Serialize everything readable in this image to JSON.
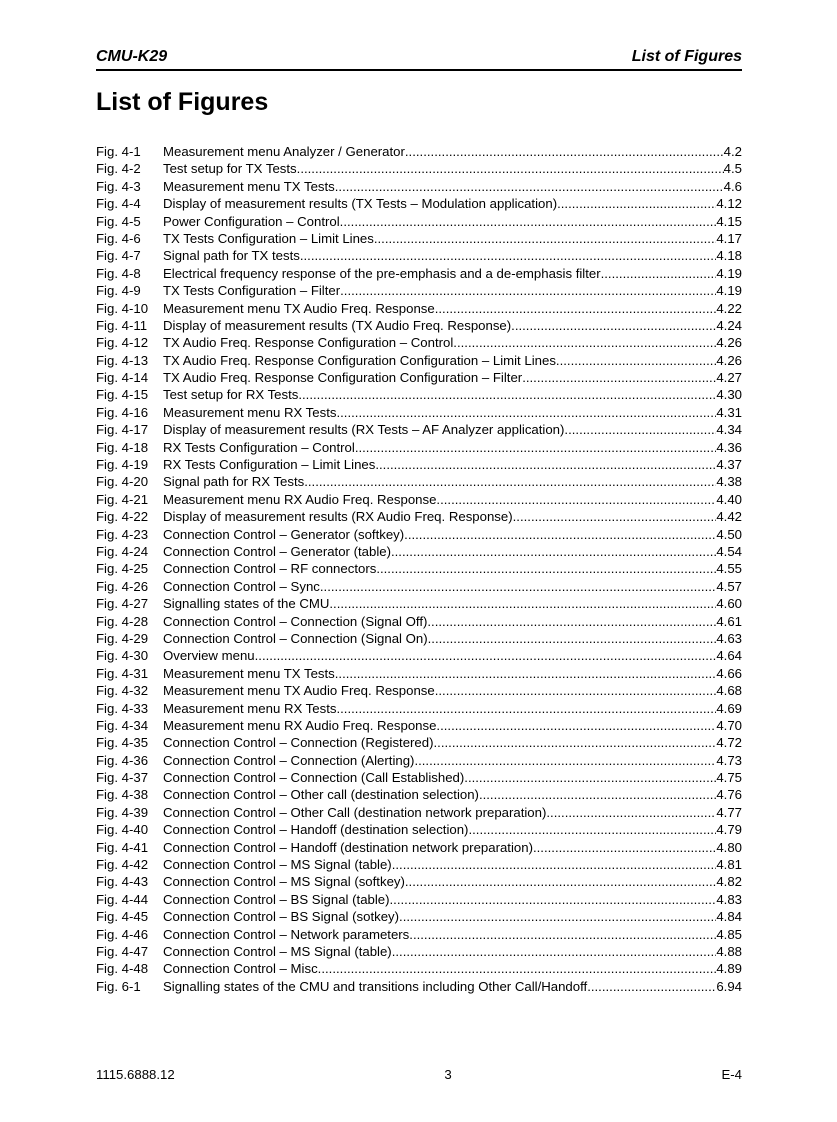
{
  "header": {
    "left": "CMU-K29",
    "right": "List of Figures"
  },
  "title": "List of Figures",
  "figures": [
    {
      "num": "Fig. 4-1",
      "title": "Measurement menu Analyzer / Generator",
      "page": "4.2"
    },
    {
      "num": "Fig. 4-2",
      "title": "Test setup for TX Tests",
      "page": "4.5"
    },
    {
      "num": "Fig. 4-3",
      "title": "Measurement menu TX Tests",
      "page": "4.6"
    },
    {
      "num": "Fig. 4-4",
      "title": "Display of measurement results (TX Tests – Modulation application)",
      "page": "4.12"
    },
    {
      "num": "Fig. 4-5",
      "title": "Power Configuration – Control",
      "page": "4.15"
    },
    {
      "num": "Fig. 4-6",
      "title": "TX Tests Configuration – Limit Lines",
      "page": "4.17"
    },
    {
      "num": "Fig. 4-7",
      "title": "Signal path for TX tests",
      "page": "4.18"
    },
    {
      "num": "Fig. 4-8",
      "title": "Electrical frequency response of the pre-emphasis and a de-emphasis filter",
      "page": "4.19"
    },
    {
      "num": "Fig. 4-9",
      "title": "TX Tests Configuration – Filter",
      "page": "4.19"
    },
    {
      "num": "Fig. 4-10",
      "title": "Measurement menu TX Audio Freq. Response",
      "page": "4.22"
    },
    {
      "num": "Fig. 4-11",
      "title": "Display of measurement results (TX Audio Freq. Response)",
      "page": "4.24"
    },
    {
      "num": "Fig. 4-12",
      "title": "TX Audio Freq. Response Configuration – Control",
      "page": "4.26"
    },
    {
      "num": "Fig. 4-13",
      "title": "TX Audio Freq. Response Configuration Configuration – Limit Lines",
      "page": "4.26"
    },
    {
      "num": "Fig. 4-14",
      "title": "TX Audio Freq. Response Configuration Configuration – Filter",
      "page": "4.27"
    },
    {
      "num": "Fig. 4-15",
      "title": "Test setup for RX Tests",
      "page": "4.30"
    },
    {
      "num": "Fig. 4-16",
      "title": "Measurement menu RX Tests",
      "page": "4.31"
    },
    {
      "num": "Fig. 4-17",
      "title": "Display of measurement results (RX Tests – AF Analyzer application)",
      "page": "4.34"
    },
    {
      "num": "Fig. 4-18",
      "title": "RX Tests Configuration – Control",
      "page": "4.36"
    },
    {
      "num": "Fig. 4-19",
      "title": "RX Tests Configuration – Limit Lines",
      "page": "4.37"
    },
    {
      "num": "Fig. 4-20",
      "title": "Signal path for RX Tests",
      "page": "4.38"
    },
    {
      "num": "Fig. 4-21",
      "title": "Measurement menu RX Audio Freq. Response",
      "page": "4.40"
    },
    {
      "num": "Fig. 4-22",
      "title": "Display of measurement results (RX Audio Freq. Response)",
      "page": "4.42"
    },
    {
      "num": "Fig. 4-23",
      "title": "Connection Control – Generator (softkey)",
      "page": "4.50"
    },
    {
      "num": "Fig. 4-24",
      "title": "Connection Control – Generator (table)",
      "page": "4.54"
    },
    {
      "num": "Fig. 4-25",
      "title": "Connection Control – RF connectors",
      "page": "4.55"
    },
    {
      "num": "Fig. 4-26",
      "title": "Connection Control – Sync.",
      "page": "4.57"
    },
    {
      "num": "Fig. 4-27",
      "title": "Signalling states of the CMU",
      "page": "4.60"
    },
    {
      "num": "Fig. 4-28",
      "title": "Connection Control – Connection (Signal Off)",
      "page": "4.61"
    },
    {
      "num": "Fig. 4-29",
      "title": "Connection Control – Connection (Signal On)",
      "page": "4.63"
    },
    {
      "num": "Fig. 4-30",
      "title": "Overview menu",
      "page": "4.64"
    },
    {
      "num": "Fig. 4-31",
      "title": "Measurement menu TX Tests",
      "page": "4.66"
    },
    {
      "num": "Fig. 4-32",
      "title": "Measurement menu TX Audio Freq. Response",
      "page": "4.68"
    },
    {
      "num": "Fig. 4-33",
      "title": "Measurement menu RX Tests",
      "page": "4.69"
    },
    {
      "num": "Fig. 4-34",
      "title": "Measurement menu RX Audio Freq. Response",
      "page": "4.70"
    },
    {
      "num": "Fig. 4-35",
      "title": "Connection Control – Connection (Registered)",
      "page": "4.72"
    },
    {
      "num": "Fig. 4-36",
      "title": "Connection Control – Connection (Alerting)",
      "page": "4.73"
    },
    {
      "num": "Fig. 4-37",
      "title": "Connection Control – Connection (Call Established)",
      "page": "4.75"
    },
    {
      "num": "Fig. 4-38",
      "title": "Connection Control – Other call (destination selection)",
      "page": "4.76"
    },
    {
      "num": "Fig. 4-39",
      "title": "Connection Control – Other Call (destination network preparation)",
      "page": "4.77"
    },
    {
      "num": "Fig. 4-40",
      "title": "Connection Control – Handoff (destination selection)",
      "page": "4.79"
    },
    {
      "num": "Fig. 4-41",
      "title": "Connection Control – Handoff (destination network preparation)",
      "page": "4.80"
    },
    {
      "num": "Fig. 4-42",
      "title": "Connection Control – MS Signal (table)",
      "page": "4.81"
    },
    {
      "num": "Fig. 4-43",
      "title": "Connection Control – MS Signal (softkey)",
      "page": "4.82"
    },
    {
      "num": "Fig. 4-44",
      "title": "Connection Control – BS Signal (table)",
      "page": "4.83"
    },
    {
      "num": "Fig. 4-45",
      "title": "Connection Control – BS Signal (sotkey)",
      "page": "4.84"
    },
    {
      "num": "Fig. 4-46",
      "title": "Connection Control – Network parameters",
      "page": "4.85"
    },
    {
      "num": "Fig. 4-47",
      "title": "Connection Control – MS Signal (table)",
      "page": "4.88"
    },
    {
      "num": "Fig. 4-48",
      "title": "Connection Control – Misc",
      "page": "4.89"
    },
    {
      "num": "Fig. 6-1",
      "title": "Signalling states of the CMU and transitions including Other Call/Handoff",
      "page": "6.94"
    }
  ],
  "footer": {
    "left": "1115.6888.12",
    "center": "3",
    "right": "E-4"
  }
}
